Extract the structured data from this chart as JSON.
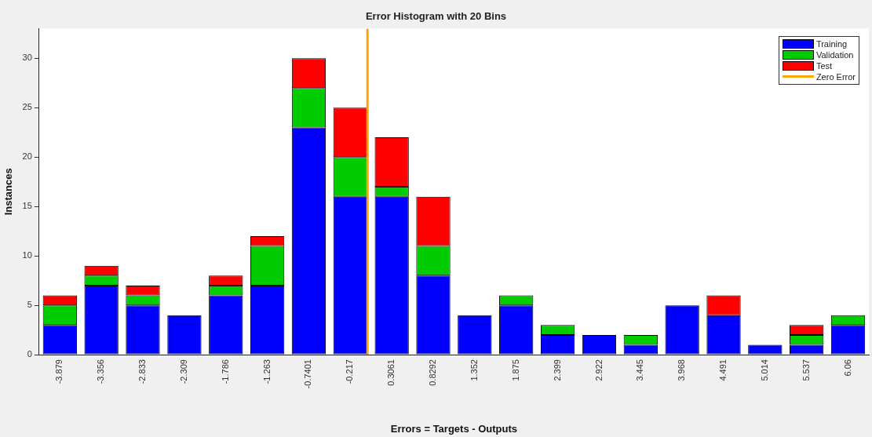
{
  "chart_data": {
    "type": "bar",
    "title": "Error Histogram with 20 Bins",
    "xlabel": "Errors = Targets - Outputs",
    "ylabel": "Instances",
    "x": [
      -3.879,
      -3.356,
      -2.833,
      -2.309,
      -1.786,
      -1.263,
      -0.7401,
      -0.217,
      0.3061,
      0.8292,
      1.352,
      1.875,
      2.399,
      2.922,
      3.445,
      3.968,
      4.491,
      5.014,
      5.537,
      6.06
    ],
    "xlim": [
      -4.141,
      6.322
    ],
    "xticks": [
      -3.879,
      -3.356,
      -2.833,
      -2.309,
      -1.786,
      -1.263,
      -0.7401,
      -0.217,
      0.3061,
      0.8292,
      1.352,
      1.875,
      2.399,
      2.922,
      3.445,
      3.968,
      4.491,
      5.014,
      5.537,
      6.06
    ],
    "ylim": [
      0,
      33
    ],
    "yticks": [
      0,
      5,
      10,
      15,
      20,
      25,
      30
    ],
    "stacked": true,
    "series": [
      {
        "name": "Training",
        "color": "#0000ff",
        "values": [
          3,
          7,
          5,
          4,
          6,
          7,
          23,
          16,
          16,
          8,
          4,
          5,
          2,
          2,
          1,
          5,
          4,
          1,
          1,
          3
        ]
      },
      {
        "name": "Validation",
        "color": "#00cc00",
        "values": [
          2,
          1,
          1,
          0,
          1,
          4,
          4,
          4,
          1,
          3,
          0,
          1,
          1,
          0,
          1,
          0,
          0,
          0,
          1,
          1
        ]
      },
      {
        "name": "Test",
        "color": "#ff0000",
        "values": [
          1,
          1,
          1,
          0,
          1,
          1,
          3,
          5,
          5,
          5,
          0,
          0,
          0,
          0,
          0,
          0,
          2,
          0,
          1,
          0
        ]
      },
      {
        "name": "Zero Error",
        "type": "line",
        "color": "#ffa500",
        "x": [
          0,
          0
        ],
        "values": [
          0,
          33
        ]
      }
    ],
    "legend": "top right",
    "grid": false
  }
}
